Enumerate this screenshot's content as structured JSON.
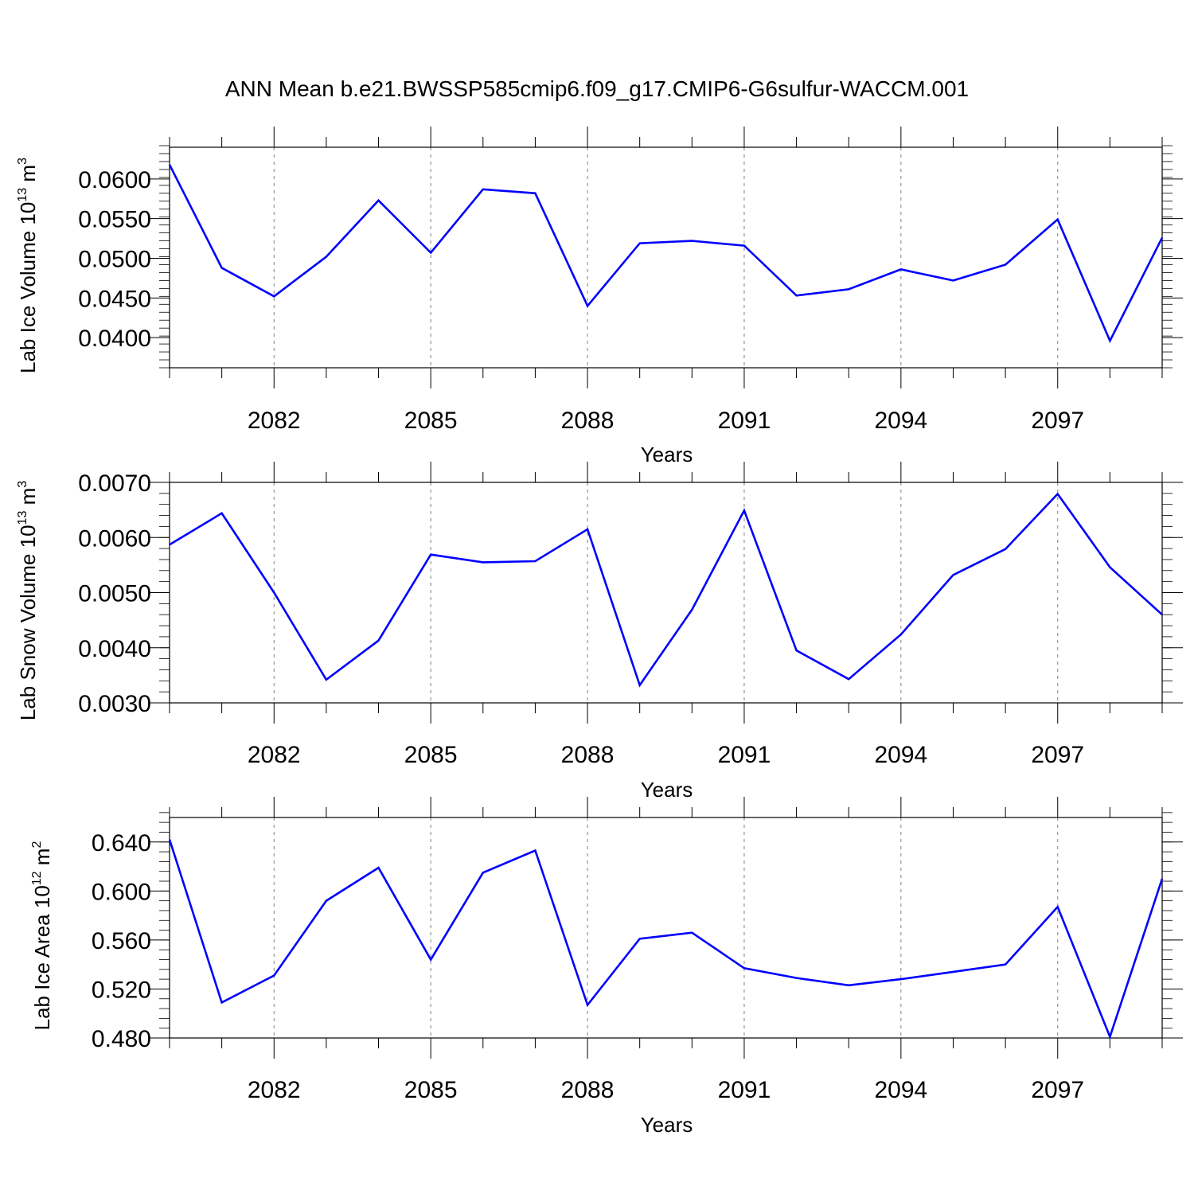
{
  "page": {
    "title": "ANN Mean b.e21.BWSSP585cmip6.f09_g17.CMIP6-G6sulfur-WACCM.001"
  },
  "colors": {
    "line": "#0000ff",
    "axis": "#000000",
    "grid": "#808080"
  },
  "chart_data": [
    {
      "type": "line",
      "title": "",
      "xlabel": "Years",
      "ylabel": "Lab Ice Volume 10",
      "ylabel_exponent": "13",
      "ylabel_unit": " m",
      "ylabel_unit_exponent": "3",
      "xlim": [
        2080,
        2099
      ],
      "ylim": [
        0.0362,
        0.064
      ],
      "xticks": [
        2082,
        2085,
        2088,
        2091,
        2094,
        2097
      ],
      "yticks": [
        0.04,
        0.045,
        0.05,
        0.055,
        0.06
      ],
      "ytick_labels": [
        "0.0400",
        "0.0450",
        "0.0500",
        "0.0550",
        "0.0600"
      ],
      "ytick_minor_step": 0.001,
      "grid": "vertical dashed at major x ticks",
      "x": [
        2080,
        2081,
        2082,
        2083,
        2084,
        2085,
        2086,
        2087,
        2088,
        2089,
        2090,
        2091,
        2092,
        2093,
        2094,
        2095,
        2096,
        2097,
        2098,
        2099
      ],
      "series": [
        {
          "values": [
            0.0618,
            0.0488,
            0.0452,
            0.0502,
            0.0573,
            0.0507,
            0.0587,
            0.0582,
            0.044,
            0.0519,
            0.0522,
            0.0516,
            0.0453,
            0.0461,
            0.0486,
            0.0472,
            0.0492,
            0.0549,
            0.0396,
            0.0526
          ]
        }
      ]
    },
    {
      "type": "line",
      "title": "",
      "xlabel": "Years",
      "ylabel": "Lab Snow Volume 10",
      "ylabel_exponent": "13",
      "ylabel_unit": " m",
      "ylabel_unit_exponent": "3",
      "xlim": [
        2080,
        2099
      ],
      "ylim": [
        0.003,
        0.007
      ],
      "xticks": [
        2082,
        2085,
        2088,
        2091,
        2094,
        2097
      ],
      "yticks": [
        0.003,
        0.004,
        0.005,
        0.006,
        0.007
      ],
      "ytick_labels": [
        "0.0030",
        "0.0040",
        "0.0050",
        "0.0060",
        "0.0070"
      ],
      "ytick_minor_step": 0.0002,
      "grid": "vertical dashed at major x ticks",
      "x": [
        2080,
        2081,
        2082,
        2083,
        2084,
        2085,
        2086,
        2087,
        2088,
        2089,
        2090,
        2091,
        2092,
        2093,
        2094,
        2095,
        2096,
        2097,
        2098,
        2099
      ],
      "series": [
        {
          "values": [
            0.00587,
            0.00644,
            0.005,
            0.00342,
            0.00413,
            0.00569,
            0.00555,
            0.00557,
            0.00615,
            0.00332,
            0.00469,
            0.00649,
            0.00395,
            0.00343,
            0.00424,
            0.00532,
            0.00579,
            0.00679,
            0.00546,
            0.0046
          ]
        }
      ]
    },
    {
      "type": "line",
      "title": "",
      "xlabel": "Years",
      "ylabel": "Lab Ice Area 10",
      "ylabel_exponent": "12",
      "ylabel_unit": " m",
      "ylabel_unit_exponent": "2",
      "xlim": [
        2080,
        2099
      ],
      "ylim": [
        0.48,
        0.66
      ],
      "xticks": [
        2082,
        2085,
        2088,
        2091,
        2094,
        2097
      ],
      "yticks": [
        0.48,
        0.52,
        0.56,
        0.6,
        0.64
      ],
      "ytick_labels": [
        "0.480",
        "0.520",
        "0.560",
        "0.600",
        "0.640"
      ],
      "ytick_minor_step": 0.008,
      "grid": "vertical dashed at major x ticks",
      "x": [
        2080,
        2081,
        2082,
        2083,
        2084,
        2085,
        2086,
        2087,
        2088,
        2089,
        2090,
        2091,
        2092,
        2093,
        2094,
        2095,
        2096,
        2097,
        2098,
        2099
      ],
      "series": [
        {
          "values": [
            0.642,
            0.509,
            0.531,
            0.592,
            0.619,
            0.544,
            0.615,
            0.633,
            0.507,
            0.561,
            0.566,
            0.537,
            0.529,
            0.523,
            0.528,
            0.534,
            0.54,
            0.587,
            0.481,
            0.61
          ]
        }
      ]
    }
  ]
}
